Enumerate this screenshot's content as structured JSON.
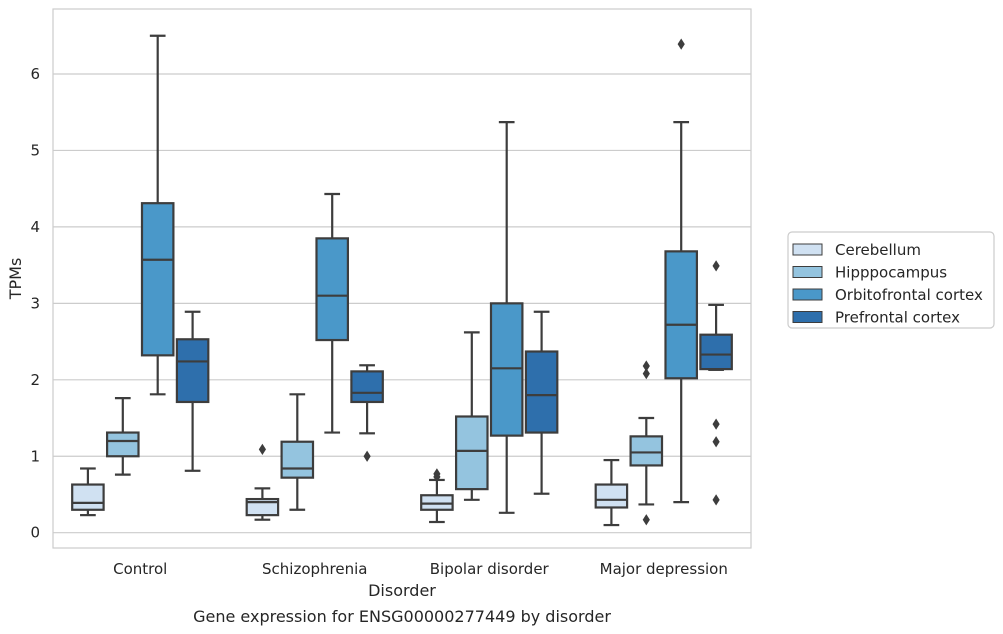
{
  "chart_data": {
    "type": "box",
    "caption": "Gene expression for ENSG00000277449 by disorder",
    "xlabel": "Disorder",
    "ylabel": "TPMs",
    "ylim": [
      -0.2,
      6.85
    ],
    "yticks": [
      0,
      1,
      2,
      3,
      4,
      5,
      6
    ],
    "grid": true,
    "legend_position": "right",
    "categories": [
      "Control",
      "Schizophrenia",
      "Bipolar disorder",
      "Major depression"
    ],
    "series": [
      {
        "name": "Cerebellum",
        "color": "#d0e1f2",
        "boxes": [
          {
            "whisker_low": 0.23,
            "q1": 0.3,
            "median": 0.39,
            "q3": 0.63,
            "whisker_high": 0.84,
            "outliers": []
          },
          {
            "whisker_low": 0.17,
            "q1": 0.23,
            "median": 0.4,
            "q3": 0.44,
            "whisker_high": 0.58,
            "outliers": [
              1.09
            ]
          },
          {
            "whisker_low": 0.14,
            "q1": 0.3,
            "median": 0.38,
            "q3": 0.49,
            "whisker_high": 0.69,
            "outliers": [
              0.77,
              0.73
            ]
          },
          {
            "whisker_low": 0.1,
            "q1": 0.33,
            "median": 0.43,
            "q3": 0.63,
            "whisker_high": 0.95,
            "outliers": []
          }
        ]
      },
      {
        "name": "Hipppocampus",
        "color": "#94c4df",
        "boxes": [
          {
            "whisker_low": 0.76,
            "q1": 1.0,
            "median": 1.2,
            "q3": 1.31,
            "whisker_high": 1.76,
            "outliers": []
          },
          {
            "whisker_low": 0.3,
            "q1": 0.72,
            "median": 0.84,
            "q3": 1.19,
            "whisker_high": 1.81,
            "outliers": []
          },
          {
            "whisker_low": 0.43,
            "q1": 0.57,
            "median": 1.07,
            "q3": 1.52,
            "whisker_high": 2.62,
            "outliers": []
          },
          {
            "whisker_low": 0.37,
            "q1": 0.88,
            "median": 1.05,
            "q3": 1.26,
            "whisker_high": 1.5,
            "outliers": [
              0.17,
              2.08,
              2.18
            ]
          }
        ]
      },
      {
        "name": "Orbitofrontal cortex",
        "color": "#4a98c9",
        "boxes": [
          {
            "whisker_low": 1.81,
            "q1": 2.32,
            "median": 3.57,
            "q3": 4.31,
            "whisker_high": 6.5,
            "outliers": []
          },
          {
            "whisker_low": 1.31,
            "q1": 2.52,
            "median": 3.1,
            "q3": 3.85,
            "whisker_high": 4.43,
            "outliers": []
          },
          {
            "whisker_low": 0.26,
            "q1": 1.27,
            "median": 2.15,
            "q3": 3.0,
            "whisker_high": 5.37,
            "outliers": []
          },
          {
            "whisker_low": 0.4,
            "q1": 2.02,
            "median": 2.72,
            "q3": 3.68,
            "whisker_high": 5.37,
            "outliers": [
              6.39
            ]
          }
        ]
      },
      {
        "name": "Prefrontal cortex",
        "color": "#2e6fac",
        "boxes": [
          {
            "whisker_low": 0.81,
            "q1": 1.71,
            "median": 2.24,
            "q3": 2.53,
            "whisker_high": 2.89,
            "outliers": []
          },
          {
            "whisker_low": 1.3,
            "q1": 1.71,
            "median": 1.83,
            "q3": 2.11,
            "whisker_high": 2.19,
            "outliers": [
              1.0
            ]
          },
          {
            "whisker_low": 0.51,
            "q1": 1.31,
            "median": 1.8,
            "q3": 2.37,
            "whisker_high": 2.89,
            "outliers": []
          },
          {
            "whisker_low": 2.13,
            "q1": 2.14,
            "median": 2.33,
            "q3": 2.59,
            "whisker_high": 2.98,
            "outliers": [
              0.43,
              1.19,
              1.42,
              3.49
            ]
          }
        ]
      }
    ]
  }
}
